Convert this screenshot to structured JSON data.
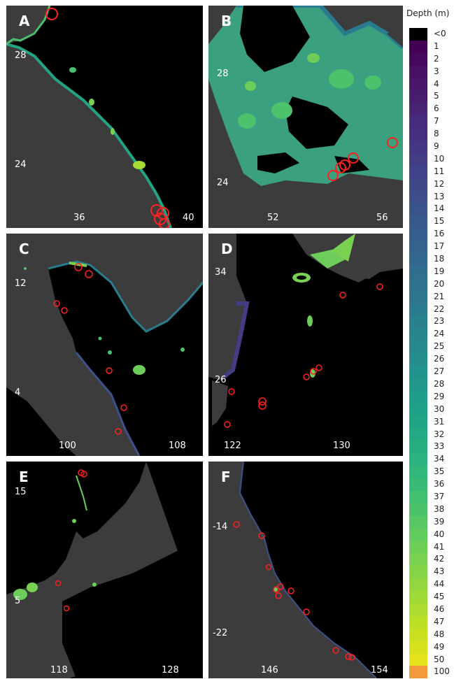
{
  "legend": {
    "title": "Depth (m)",
    "labels": [
      "<0",
      "1",
      "2",
      "3",
      "4",
      "5",
      "6",
      "7",
      "8",
      "9",
      "10",
      "11",
      "12",
      "13",
      "14",
      "15",
      "16",
      "17",
      "18",
      "19",
      "20",
      "21",
      "22",
      "23",
      "24",
      "25",
      "26",
      "27",
      "28",
      "29",
      "30",
      "31",
      "32",
      "33",
      "34",
      "35",
      "36",
      "37",
      "38",
      "39",
      "40",
      "41",
      "42",
      "43",
      "44",
      "45",
      "46",
      "47",
      "48",
      "49",
      "50",
      "100"
    ],
    "colors": [
      "#000000",
      "#440154",
      "#46085c",
      "#471063",
      "#481769",
      "#481d6f",
      "#482475",
      "#472a7a",
      "#46307e",
      "#453781",
      "#433d84",
      "#414287",
      "#3f4889",
      "#3d4e8a",
      "#3a538b",
      "#38598c",
      "#365e8d",
      "#34638d",
      "#32688e",
      "#306d8e",
      "#2e728e",
      "#2d768e",
      "#2b7b8e",
      "#29808e",
      "#27858e",
      "#26898e",
      "#248e8d",
      "#22928c",
      "#21978c",
      "#1f9c8a",
      "#1fa188",
      "#1fa586",
      "#21aa84",
      "#25af81",
      "#2ab37e",
      "#31b77a",
      "#39bb76",
      "#42bf71",
      "#4cc36b",
      "#57c765",
      "#62cb5e",
      "#6dce57",
      "#79d14f",
      "#85d447",
      "#92d73e",
      "#9fda36",
      "#acdc2d",
      "#badf25",
      "#c8e020",
      "#d6e21e",
      "#e4e31d",
      "#f59a3c"
    ]
  },
  "panels": [
    {
      "label": "A",
      "yticks": [
        "28",
        "24"
      ],
      "xticks": [
        "36",
        "40"
      ]
    },
    {
      "label": "B",
      "yticks": [
        "28",
        "24"
      ],
      "xticks": [
        "52",
        "56"
      ]
    },
    {
      "label": "C",
      "yticks": [
        "12",
        "4"
      ],
      "xticks": [
        "100",
        "108"
      ]
    },
    {
      "label": "D",
      "yticks": [
        "34",
        "26"
      ],
      "xticks": [
        "122",
        "130"
      ]
    },
    {
      "label": "E",
      "yticks": [
        "15",
        "5"
      ],
      "xticks": [
        "118",
        "128"
      ]
    },
    {
      "label": "F",
      "yticks": [
        "-14",
        "-22"
      ],
      "xticks": [
        "146",
        "154"
      ]
    }
  ]
}
